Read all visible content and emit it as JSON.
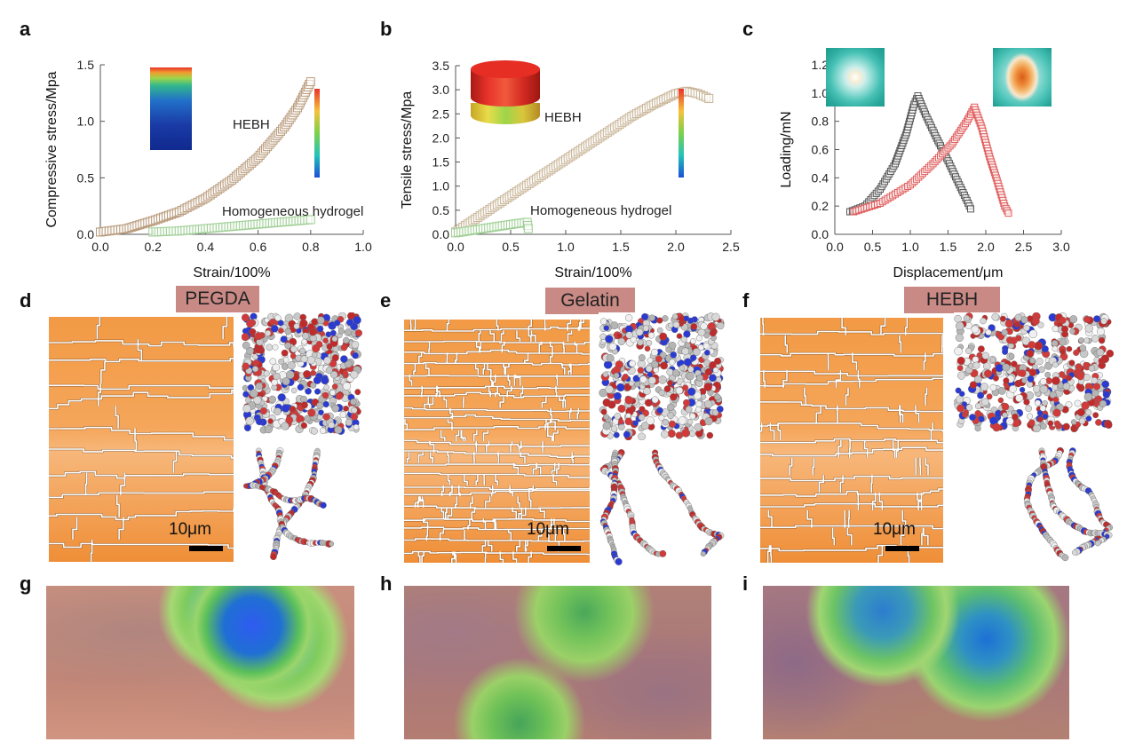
{
  "panels": {
    "a": {
      "label": "a"
    },
    "b": {
      "label": "b"
    },
    "c": {
      "label": "c"
    },
    "d": {
      "label": "d",
      "title": "PEGDA",
      "scale": "10μm"
    },
    "e": {
      "label": "e",
      "title": "Gelatin",
      "scale": "10μm"
    },
    "f": {
      "label": "f",
      "title": "HEBH",
      "scale": "10μm"
    },
    "g": {
      "label": "g"
    },
    "h": {
      "label": "h"
    },
    "i": {
      "label": "i"
    }
  },
  "colors": {
    "hebh_marker": "#b89a7a",
    "homog_marker": "#9fcf95",
    "c_series1": "#555555",
    "c_series2": "#e05a5a",
    "grain_fill": "#f0953f",
    "title_bg": "#c98a86"
  },
  "chart_data": [
    {
      "id": "a",
      "type": "scatter",
      "title": "",
      "xlabel": "Strain/100%",
      "ylabel": "Compressive stress/Mpa",
      "xlim": [
        0,
        1.0
      ],
      "ylim": [
        0,
        1.5
      ],
      "xticks": [
        "0.0",
        "0.2",
        "0.4",
        "0.6",
        "0.8",
        "1.0"
      ],
      "yticks": [
        "0.0",
        "0.5",
        "1.0",
        "1.5"
      ],
      "series": [
        {
          "name": "HEBH",
          "color": "#b89a7a",
          "points": [
            [
              0,
              0.02
            ],
            [
              0.1,
              0.05
            ],
            [
              0.2,
              0.12
            ],
            [
              0.3,
              0.2
            ],
            [
              0.4,
              0.32
            ],
            [
              0.5,
              0.48
            ],
            [
              0.6,
              0.68
            ],
            [
              0.7,
              0.95
            ],
            [
              0.75,
              1.12
            ],
            [
              0.8,
              1.35
            ]
          ]
        },
        {
          "name": "Homogeneous hydrogel",
          "color": "#9fcf95",
          "points": [
            [
              0.2,
              0.02
            ],
            [
              0.3,
              0.03
            ],
            [
              0.4,
              0.05
            ],
            [
              0.5,
              0.07
            ],
            [
              0.6,
              0.09
            ],
            [
              0.7,
              0.11
            ],
            [
              0.8,
              0.13
            ]
          ]
        }
      ],
      "annotations": [
        "HEBH",
        "Homogeneous hydrogel"
      ]
    },
    {
      "id": "b",
      "type": "scatter",
      "title": "",
      "xlabel": "Strain/100%",
      "ylabel": "Tensile stress/Mpa",
      "xlim": [
        0,
        2.5
      ],
      "ylim": [
        0,
        3.5
      ],
      "xticks": [
        "0.0",
        "0.5",
        "1.0",
        "1.5",
        "2.0",
        "2.5"
      ],
      "yticks": [
        "0.0",
        "0.5",
        "1.0",
        "1.5",
        "2.0",
        "2.5",
        "3.0",
        "3.5"
      ],
      "series": [
        {
          "name": "HEBH",
          "color": "#c8b496",
          "points": [
            [
              0,
              0.05
            ],
            [
              0.2,
              0.35
            ],
            [
              0.4,
              0.65
            ],
            [
              0.6,
              0.95
            ],
            [
              0.8,
              1.25
            ],
            [
              1.0,
              1.55
            ],
            [
              1.2,
              1.85
            ],
            [
              1.4,
              2.15
            ],
            [
              1.6,
              2.45
            ],
            [
              1.8,
              2.7
            ],
            [
              2.0,
              2.92
            ],
            [
              2.1,
              2.97
            ],
            [
              2.2,
              2.92
            ],
            [
              2.3,
              2.82
            ]
          ]
        },
        {
          "name": "Homogeneous hydrogel",
          "color": "#9fcf95",
          "points": [
            [
              0,
              0.03
            ],
            [
              0.2,
              0.1
            ],
            [
              0.4,
              0.17
            ],
            [
              0.55,
              0.22
            ],
            [
              0.65,
              0.25
            ],
            [
              0.66,
              0.12
            ]
          ]
        }
      ],
      "annotations": [
        "HEBH",
        "Homogeneous hydrogel"
      ]
    },
    {
      "id": "c",
      "type": "line",
      "title": "",
      "xlabel": "Displacement/μm",
      "ylabel": "Loading/mN",
      "xlim": [
        0,
        3.0
      ],
      "ylim": [
        0,
        1.2
      ],
      "xticks": [
        "0.0",
        "0.5",
        "1.0",
        "1.5",
        "2.0",
        "2.5",
        "3.0"
      ],
      "yticks": [
        "0.0",
        "0.2",
        "0.4",
        "0.6",
        "0.8",
        "1.0",
        "1.2"
      ],
      "series": [
        {
          "name": "series-1",
          "color": "#555555",
          "points": [
            [
              0.2,
              0.16
            ],
            [
              0.4,
              0.2
            ],
            [
              0.6,
              0.32
            ],
            [
              0.8,
              0.5
            ],
            [
              0.95,
              0.72
            ],
            [
              1.05,
              0.92
            ],
            [
              1.1,
              0.98
            ],
            [
              1.2,
              0.85
            ],
            [
              1.35,
              0.68
            ],
            [
              1.5,
              0.52
            ],
            [
              1.65,
              0.35
            ],
            [
              1.75,
              0.24
            ],
            [
              1.8,
              0.18
            ]
          ]
        },
        {
          "name": "series-2",
          "color": "#e05a5a",
          "points": [
            [
              0.25,
              0.16
            ],
            [
              0.6,
              0.22
            ],
            [
              1.0,
              0.35
            ],
            [
              1.3,
              0.5
            ],
            [
              1.55,
              0.64
            ],
            [
              1.75,
              0.8
            ],
            [
              1.85,
              0.9
            ],
            [
              1.95,
              0.75
            ],
            [
              2.05,
              0.55
            ],
            [
              2.15,
              0.38
            ],
            [
              2.25,
              0.2
            ],
            [
              2.3,
              0.15
            ]
          ]
        }
      ]
    }
  ]
}
